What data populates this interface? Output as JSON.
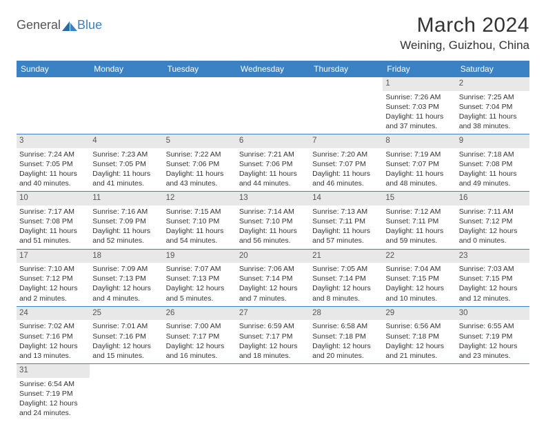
{
  "logo": {
    "general": "General",
    "blue": "Blue"
  },
  "title": "March 2024",
  "location": "Weining, Guizhou, China",
  "weekdays": [
    "Sunday",
    "Monday",
    "Tuesday",
    "Wednesday",
    "Thursday",
    "Friday",
    "Saturday"
  ],
  "colors": {
    "header_bg": "#3b82c4",
    "header_fg": "#ffffff",
    "daynum_bg": "#e8e8e8",
    "text": "#333333",
    "border": "#3b82c4",
    "logo_blue": "#3b82c4",
    "logo_grey": "#555555"
  },
  "weeks": [
    [
      {
        "day": "",
        "sunrise": "",
        "sunset": "",
        "daylight": ""
      },
      {
        "day": "",
        "sunrise": "",
        "sunset": "",
        "daylight": ""
      },
      {
        "day": "",
        "sunrise": "",
        "sunset": "",
        "daylight": ""
      },
      {
        "day": "",
        "sunrise": "",
        "sunset": "",
        "daylight": ""
      },
      {
        "day": "",
        "sunrise": "",
        "sunset": "",
        "daylight": ""
      },
      {
        "day": "1",
        "sunrise": "Sunrise: 7:26 AM",
        "sunset": "Sunset: 7:03 PM",
        "daylight": "Daylight: 11 hours and 37 minutes."
      },
      {
        "day": "2",
        "sunrise": "Sunrise: 7:25 AM",
        "sunset": "Sunset: 7:04 PM",
        "daylight": "Daylight: 11 hours and 38 minutes."
      }
    ],
    [
      {
        "day": "3",
        "sunrise": "Sunrise: 7:24 AM",
        "sunset": "Sunset: 7:05 PM",
        "daylight": "Daylight: 11 hours and 40 minutes."
      },
      {
        "day": "4",
        "sunrise": "Sunrise: 7:23 AM",
        "sunset": "Sunset: 7:05 PM",
        "daylight": "Daylight: 11 hours and 41 minutes."
      },
      {
        "day": "5",
        "sunrise": "Sunrise: 7:22 AM",
        "sunset": "Sunset: 7:06 PM",
        "daylight": "Daylight: 11 hours and 43 minutes."
      },
      {
        "day": "6",
        "sunrise": "Sunrise: 7:21 AM",
        "sunset": "Sunset: 7:06 PM",
        "daylight": "Daylight: 11 hours and 44 minutes."
      },
      {
        "day": "7",
        "sunrise": "Sunrise: 7:20 AM",
        "sunset": "Sunset: 7:07 PM",
        "daylight": "Daylight: 11 hours and 46 minutes."
      },
      {
        "day": "8",
        "sunrise": "Sunrise: 7:19 AM",
        "sunset": "Sunset: 7:07 PM",
        "daylight": "Daylight: 11 hours and 48 minutes."
      },
      {
        "day": "9",
        "sunrise": "Sunrise: 7:18 AM",
        "sunset": "Sunset: 7:08 PM",
        "daylight": "Daylight: 11 hours and 49 minutes."
      }
    ],
    [
      {
        "day": "10",
        "sunrise": "Sunrise: 7:17 AM",
        "sunset": "Sunset: 7:08 PM",
        "daylight": "Daylight: 11 hours and 51 minutes."
      },
      {
        "day": "11",
        "sunrise": "Sunrise: 7:16 AM",
        "sunset": "Sunset: 7:09 PM",
        "daylight": "Daylight: 11 hours and 52 minutes."
      },
      {
        "day": "12",
        "sunrise": "Sunrise: 7:15 AM",
        "sunset": "Sunset: 7:10 PM",
        "daylight": "Daylight: 11 hours and 54 minutes."
      },
      {
        "day": "13",
        "sunrise": "Sunrise: 7:14 AM",
        "sunset": "Sunset: 7:10 PM",
        "daylight": "Daylight: 11 hours and 56 minutes."
      },
      {
        "day": "14",
        "sunrise": "Sunrise: 7:13 AM",
        "sunset": "Sunset: 7:11 PM",
        "daylight": "Daylight: 11 hours and 57 minutes."
      },
      {
        "day": "15",
        "sunrise": "Sunrise: 7:12 AM",
        "sunset": "Sunset: 7:11 PM",
        "daylight": "Daylight: 11 hours and 59 minutes."
      },
      {
        "day": "16",
        "sunrise": "Sunrise: 7:11 AM",
        "sunset": "Sunset: 7:12 PM",
        "daylight": "Daylight: 12 hours and 0 minutes."
      }
    ],
    [
      {
        "day": "17",
        "sunrise": "Sunrise: 7:10 AM",
        "sunset": "Sunset: 7:12 PM",
        "daylight": "Daylight: 12 hours and 2 minutes."
      },
      {
        "day": "18",
        "sunrise": "Sunrise: 7:09 AM",
        "sunset": "Sunset: 7:13 PM",
        "daylight": "Daylight: 12 hours and 4 minutes."
      },
      {
        "day": "19",
        "sunrise": "Sunrise: 7:07 AM",
        "sunset": "Sunset: 7:13 PM",
        "daylight": "Daylight: 12 hours and 5 minutes."
      },
      {
        "day": "20",
        "sunrise": "Sunrise: 7:06 AM",
        "sunset": "Sunset: 7:14 PM",
        "daylight": "Daylight: 12 hours and 7 minutes."
      },
      {
        "day": "21",
        "sunrise": "Sunrise: 7:05 AM",
        "sunset": "Sunset: 7:14 PM",
        "daylight": "Daylight: 12 hours and 8 minutes."
      },
      {
        "day": "22",
        "sunrise": "Sunrise: 7:04 AM",
        "sunset": "Sunset: 7:15 PM",
        "daylight": "Daylight: 12 hours and 10 minutes."
      },
      {
        "day": "23",
        "sunrise": "Sunrise: 7:03 AM",
        "sunset": "Sunset: 7:15 PM",
        "daylight": "Daylight: 12 hours and 12 minutes."
      }
    ],
    [
      {
        "day": "24",
        "sunrise": "Sunrise: 7:02 AM",
        "sunset": "Sunset: 7:16 PM",
        "daylight": "Daylight: 12 hours and 13 minutes."
      },
      {
        "day": "25",
        "sunrise": "Sunrise: 7:01 AM",
        "sunset": "Sunset: 7:16 PM",
        "daylight": "Daylight: 12 hours and 15 minutes."
      },
      {
        "day": "26",
        "sunrise": "Sunrise: 7:00 AM",
        "sunset": "Sunset: 7:17 PM",
        "daylight": "Daylight: 12 hours and 16 minutes."
      },
      {
        "day": "27",
        "sunrise": "Sunrise: 6:59 AM",
        "sunset": "Sunset: 7:17 PM",
        "daylight": "Daylight: 12 hours and 18 minutes."
      },
      {
        "day": "28",
        "sunrise": "Sunrise: 6:58 AM",
        "sunset": "Sunset: 7:18 PM",
        "daylight": "Daylight: 12 hours and 20 minutes."
      },
      {
        "day": "29",
        "sunrise": "Sunrise: 6:56 AM",
        "sunset": "Sunset: 7:18 PM",
        "daylight": "Daylight: 12 hours and 21 minutes."
      },
      {
        "day": "30",
        "sunrise": "Sunrise: 6:55 AM",
        "sunset": "Sunset: 7:19 PM",
        "daylight": "Daylight: 12 hours and 23 minutes."
      }
    ],
    [
      {
        "day": "31",
        "sunrise": "Sunrise: 6:54 AM",
        "sunset": "Sunset: 7:19 PM",
        "daylight": "Daylight: 12 hours and 24 minutes."
      },
      {
        "day": "",
        "sunrise": "",
        "sunset": "",
        "daylight": ""
      },
      {
        "day": "",
        "sunrise": "",
        "sunset": "",
        "daylight": ""
      },
      {
        "day": "",
        "sunrise": "",
        "sunset": "",
        "daylight": ""
      },
      {
        "day": "",
        "sunrise": "",
        "sunset": "",
        "daylight": ""
      },
      {
        "day": "",
        "sunrise": "",
        "sunset": "",
        "daylight": ""
      },
      {
        "day": "",
        "sunrise": "",
        "sunset": "",
        "daylight": ""
      }
    ]
  ]
}
